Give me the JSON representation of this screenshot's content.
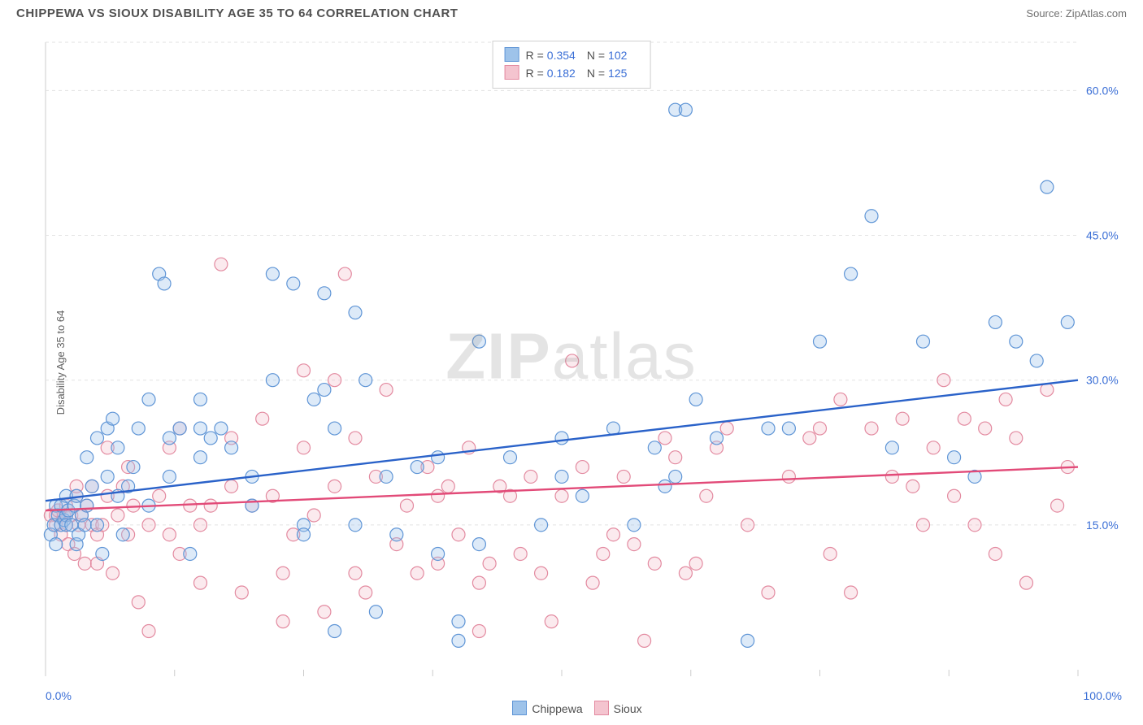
{
  "title": "CHIPPEWA VS SIOUX DISABILITY AGE 35 TO 64 CORRELATION CHART",
  "source_label": "Source:",
  "source_name": "ZipAtlas.com",
  "ylabel": "Disability Age 35 to 64",
  "watermark_a": "ZIP",
  "watermark_b": "atlas",
  "chart": {
    "type": "scatter",
    "xlim": [
      0,
      100
    ],
    "ylim": [
      0,
      65
    ],
    "yticks": [
      15,
      30,
      45,
      60
    ],
    "ytick_labels": [
      "15.0%",
      "30.0%",
      "45.0%",
      "60.0%"
    ],
    "xtick_positions": [
      0,
      12.5,
      25,
      37.5,
      50,
      62.5,
      75,
      87.5,
      100
    ],
    "x_end_labels": [
      "0.0%",
      "100.0%"
    ],
    "background_color": "#ffffff",
    "grid_color": "#e2e2e2",
    "grid_dash": "4,4",
    "axis_color": "#cccccc",
    "marker_radius": 8,
    "marker_stroke_width": 1.2,
    "marker_fill_opacity": 0.35,
    "trend_line_width": 2.4,
    "series": [
      {
        "name": "Chippewa",
        "fill": "#9ec3ea",
        "stroke": "#5f95d6",
        "trend_color": "#2a62c9",
        "R": "0.354",
        "N": "102",
        "trend": {
          "y_at_x0": 17.5,
          "y_at_x100": 30.0
        },
        "points": [
          [
            0.5,
            14
          ],
          [
            0.8,
            15
          ],
          [
            1,
            17
          ],
          [
            1,
            13
          ],
          [
            1.2,
            16
          ],
          [
            1.5,
            17
          ],
          [
            1.5,
            15
          ],
          [
            1.8,
            15.5
          ],
          [
            2,
            16
          ],
          [
            2,
            15
          ],
          [
            2,
            18
          ],
          [
            2.2,
            16.5
          ],
          [
            2.5,
            15
          ],
          [
            2.8,
            17
          ],
          [
            3,
            18
          ],
          [
            3,
            13
          ],
          [
            3.2,
            14
          ],
          [
            3.5,
            16
          ],
          [
            3.8,
            15
          ],
          [
            4,
            22
          ],
          [
            4,
            17
          ],
          [
            4.5,
            19
          ],
          [
            5,
            24
          ],
          [
            5,
            15
          ],
          [
            5.5,
            12
          ],
          [
            6,
            20
          ],
          [
            6,
            25
          ],
          [
            6.5,
            26
          ],
          [
            7,
            18
          ],
          [
            7,
            23
          ],
          [
            7.5,
            14
          ],
          [
            8,
            19
          ],
          [
            8.5,
            21
          ],
          [
            9,
            25
          ],
          [
            10,
            28
          ],
          [
            10,
            17
          ],
          [
            11,
            41
          ],
          [
            11.5,
            40
          ],
          [
            12,
            20
          ],
          [
            12,
            24
          ],
          [
            13,
            25
          ],
          [
            14,
            12
          ],
          [
            15,
            22
          ],
          [
            15,
            25
          ],
          [
            15,
            28
          ],
          [
            16,
            24
          ],
          [
            17,
            25
          ],
          [
            18,
            23
          ],
          [
            20,
            17
          ],
          [
            20,
            20
          ],
          [
            22,
            41
          ],
          [
            22,
            30
          ],
          [
            24,
            40
          ],
          [
            25,
            15
          ],
          [
            25,
            14
          ],
          [
            26,
            28
          ],
          [
            27,
            29
          ],
          [
            27,
            39
          ],
          [
            28,
            4
          ],
          [
            28,
            25
          ],
          [
            30,
            15
          ],
          [
            30,
            37
          ],
          [
            31,
            30
          ],
          [
            32,
            6
          ],
          [
            33,
            20
          ],
          [
            34,
            14
          ],
          [
            36,
            21
          ],
          [
            38,
            12
          ],
          [
            38,
            22
          ],
          [
            40,
            3
          ],
          [
            40,
            5
          ],
          [
            42,
            34
          ],
          [
            42,
            13
          ],
          [
            45,
            22
          ],
          [
            48,
            15
          ],
          [
            50,
            20
          ],
          [
            50,
            24
          ],
          [
            52,
            18
          ],
          [
            55,
            25
          ],
          [
            57,
            15
          ],
          [
            59,
            23
          ],
          [
            60,
            19
          ],
          [
            61,
            20
          ],
          [
            61,
            58
          ],
          [
            62,
            58
          ],
          [
            63,
            28
          ],
          [
            65,
            24
          ],
          [
            68,
            3
          ],
          [
            70,
            25
          ],
          [
            72,
            25
          ],
          [
            75,
            34
          ],
          [
            78,
            41
          ],
          [
            80,
            47
          ],
          [
            82,
            23
          ],
          [
            85,
            34
          ],
          [
            88,
            22
          ],
          [
            90,
            20
          ],
          [
            92,
            36
          ],
          [
            94,
            34
          ],
          [
            96,
            32
          ],
          [
            97,
            50
          ],
          [
            99,
            36
          ]
        ]
      },
      {
        "name": "Sioux",
        "fill": "#f4c4cf",
        "stroke": "#e38aa0",
        "trend_color": "#e24a78",
        "R": "0.182",
        "N": "125",
        "trend": {
          "y_at_x0": 16.5,
          "y_at_x100": 21.0
        },
        "points": [
          [
            0.5,
            16
          ],
          [
            1,
            16
          ],
          [
            1,
            15
          ],
          [
            1.2,
            16.5
          ],
          [
            1.5,
            14
          ],
          [
            1.8,
            16
          ],
          [
            2,
            15
          ],
          [
            2,
            17
          ],
          [
            2.2,
            13
          ],
          [
            2.5,
            16
          ],
          [
            2.8,
            12
          ],
          [
            3,
            18
          ],
          [
            3,
            19
          ],
          [
            3.2,
            15
          ],
          [
            3.5,
            16
          ],
          [
            3.8,
            11
          ],
          [
            4,
            17
          ],
          [
            4.5,
            15
          ],
          [
            4.5,
            19
          ],
          [
            5,
            11
          ],
          [
            5,
            14
          ],
          [
            5.5,
            15
          ],
          [
            6,
            18
          ],
          [
            6,
            23
          ],
          [
            6.5,
            10
          ],
          [
            7,
            16
          ],
          [
            7.5,
            19
          ],
          [
            8,
            14
          ],
          [
            8,
            21
          ],
          [
            8.5,
            17
          ],
          [
            9,
            7
          ],
          [
            10,
            15
          ],
          [
            10,
            4
          ],
          [
            11,
            18
          ],
          [
            12,
            14
          ],
          [
            12,
            23
          ],
          [
            13,
            12
          ],
          [
            13,
            25
          ],
          [
            14,
            17
          ],
          [
            15,
            9
          ],
          [
            15,
            15
          ],
          [
            16,
            17
          ],
          [
            17,
            42
          ],
          [
            18,
            19
          ],
          [
            18,
            24
          ],
          [
            19,
            8
          ],
          [
            20,
            17
          ],
          [
            21,
            26
          ],
          [
            22,
            18
          ],
          [
            23,
            5
          ],
          [
            23,
            10
          ],
          [
            24,
            14
          ],
          [
            25,
            31
          ],
          [
            25,
            23
          ],
          [
            26,
            16
          ],
          [
            27,
            6
          ],
          [
            28,
            19
          ],
          [
            28,
            30
          ],
          [
            29,
            41
          ],
          [
            30,
            24
          ],
          [
            30,
            10
          ],
          [
            31,
            8
          ],
          [
            32,
            20
          ],
          [
            33,
            29
          ],
          [
            34,
            13
          ],
          [
            35,
            17
          ],
          [
            36,
            10
          ],
          [
            37,
            21
          ],
          [
            38,
            18
          ],
          [
            38,
            11
          ],
          [
            39,
            19
          ],
          [
            40,
            14
          ],
          [
            41,
            23
          ],
          [
            42,
            9
          ],
          [
            42,
            4
          ],
          [
            43,
            11
          ],
          [
            44,
            19
          ],
          [
            45,
            18
          ],
          [
            46,
            12
          ],
          [
            47,
            20
          ],
          [
            48,
            10
          ],
          [
            49,
            5
          ],
          [
            50,
            18
          ],
          [
            51,
            32
          ],
          [
            52,
            21
          ],
          [
            53,
            9
          ],
          [
            54,
            12
          ],
          [
            55,
            14
          ],
          [
            56,
            20
          ],
          [
            57,
            13
          ],
          [
            58,
            3
          ],
          [
            59,
            11
          ],
          [
            60,
            24
          ],
          [
            61,
            22
          ],
          [
            62,
            10
          ],
          [
            63,
            11
          ],
          [
            64,
            18
          ],
          [
            65,
            23
          ],
          [
            66,
            25
          ],
          [
            68,
            15
          ],
          [
            70,
            8
          ],
          [
            72,
            20
          ],
          [
            74,
            24
          ],
          [
            75,
            25
          ],
          [
            76,
            12
          ],
          [
            77,
            28
          ],
          [
            78,
            8
          ],
          [
            80,
            25
          ],
          [
            82,
            20
          ],
          [
            83,
            26
          ],
          [
            84,
            19
          ],
          [
            85,
            15
          ],
          [
            86,
            23
          ],
          [
            87,
            30
          ],
          [
            88,
            18
          ],
          [
            89,
            26
          ],
          [
            90,
            15
          ],
          [
            91,
            25
          ],
          [
            92,
            12
          ],
          [
            93,
            28
          ],
          [
            94,
            24
          ],
          [
            95,
            9
          ],
          [
            97,
            29
          ],
          [
            98,
            17
          ],
          [
            99,
            21
          ]
        ]
      }
    ]
  },
  "footer_legend": [
    {
      "label": "Chippewa",
      "fill": "#9ec3ea",
      "stroke": "#5f95d6"
    },
    {
      "label": "Sioux",
      "fill": "#f4c4cf",
      "stroke": "#e38aa0"
    }
  ]
}
